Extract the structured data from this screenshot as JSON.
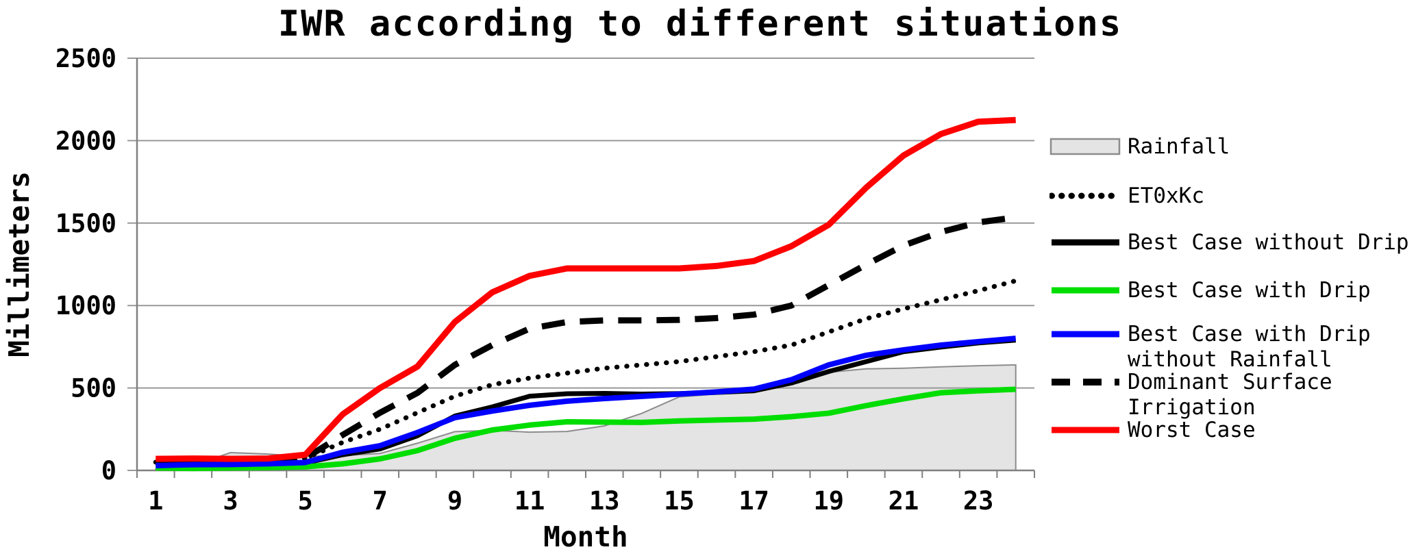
{
  "title": "IWR according to different situations",
  "axes": {
    "y_label": "Millimeters",
    "x_label": "Month"
  },
  "legend": {
    "items": [
      {
        "label": "Rainfall",
        "swatch": "area",
        "color": "#e4e4e4"
      },
      {
        "label": "ET0xKc",
        "swatch": "dotted",
        "color": "#000000"
      },
      {
        "label": "Best Case without Drip",
        "swatch": "solid",
        "color": "#000000"
      },
      {
        "label": "Best Case with Drip",
        "swatch": "solid",
        "color": "#00dd00"
      },
      {
        "label": "Best Case with Drip\nwithout Rainfall",
        "swatch": "solid",
        "color": "#0000ff"
      },
      {
        "label": "Dominant Surface\nIrrigation",
        "swatch": "dashed",
        "color": "#000000"
      },
      {
        "label": "Worst Case",
        "swatch": "solid",
        "color": "#ff0000"
      }
    ]
  },
  "chart_data": {
    "type": "line",
    "title": "IWR according to different situations",
    "xlabel": "Month",
    "ylabel": "Millimeters",
    "x": [
      1,
      2,
      3,
      4,
      5,
      6,
      7,
      8,
      9,
      10,
      11,
      12,
      13,
      14,
      15,
      16,
      17,
      18,
      19,
      20,
      21,
      22,
      23,
      24
    ],
    "xticks": [
      1,
      3,
      5,
      7,
      9,
      11,
      13,
      15,
      17,
      19,
      21,
      23
    ],
    "yticks": [
      0,
      500,
      1000,
      1500,
      2000,
      2500
    ],
    "ylim": [
      0,
      2500
    ],
    "grid": "horizontal",
    "legend_position": "right",
    "series": [
      {
        "id": "rainfall",
        "name": "Rainfall",
        "style": "area",
        "color": "#e4e4e4",
        "border": "#8c8c8c",
        "width": 2,
        "values": [
          8,
          30,
          108,
          99,
          85,
          90,
          103,
          165,
          235,
          243,
          232,
          236,
          270,
          346,
          446,
          463,
          475,
          533,
          595,
          616,
          620,
          628,
          635,
          640
        ]
      },
      {
        "id": "et0xkc",
        "name": "ET0xKc",
        "style": "dotted",
        "color": "#000000",
        "width": 7,
        "values": [
          50,
          45,
          45,
          48,
          73,
          170,
          250,
          350,
          450,
          520,
          560,
          590,
          620,
          640,
          660,
          690,
          720,
          760,
          840,
          920,
          980,
          1035,
          1090,
          1150
        ]
      },
      {
        "id": "dominant-surface-irrigation",
        "name": "Dominant Surface Irrigation",
        "style": "dashed",
        "color": "#000000",
        "width": 9,
        "values": [
          45,
          45,
          48,
          50,
          74,
          215,
          350,
          470,
          640,
          760,
          860,
          900,
          910,
          910,
          913,
          924,
          945,
          1000,
          1124,
          1248,
          1364,
          1446,
          1504,
          1535
        ]
      },
      {
        "id": "best-case-without-drip",
        "name": "Best Case without Drip",
        "style": "solid",
        "color": "#000000",
        "width": 7,
        "values": [
          48,
          42,
          45,
          40,
          45,
          95,
          130,
          210,
          330,
          385,
          450,
          465,
          467,
          463,
          466,
          473,
          483,
          530,
          600,
          660,
          720,
          748,
          773,
          790
        ]
      },
      {
        "id": "best-case-with-drip",
        "name": "Best Case with Drip",
        "style": "solid",
        "color": "#00dd00",
        "width": 8,
        "values": [
          15,
          12,
          15,
          17,
          22,
          40,
          70,
          120,
          195,
          245,
          275,
          295,
          293,
          291,
          300,
          306,
          311,
          326,
          347,
          393,
          434,
          471,
          483,
          492
        ]
      },
      {
        "id": "best-case-with-drip-without-rainfall",
        "name": "Best Case with Drip without Rainfall",
        "style": "solid",
        "color": "#0000ff",
        "width": 8,
        "values": [
          29,
          35,
          36,
          40,
          48,
          110,
          150,
          230,
          320,
          360,
          395,
          420,
          436,
          449,
          463,
          476,
          493,
          550,
          640,
          698,
          731,
          760,
          781,
          801
        ]
      },
      {
        "id": "worst-case",
        "name": "Worst Case",
        "style": "solid",
        "color": "#ff0000",
        "width": 9,
        "values": [
          70,
          72,
          70,
          72,
          95,
          340,
          500,
          630,
          900,
          1080,
          1180,
          1225,
          1225,
          1225,
          1225,
          1240,
          1270,
          1360,
          1490,
          1715,
          1910,
          2040,
          2115,
          2125
        ]
      }
    ]
  }
}
